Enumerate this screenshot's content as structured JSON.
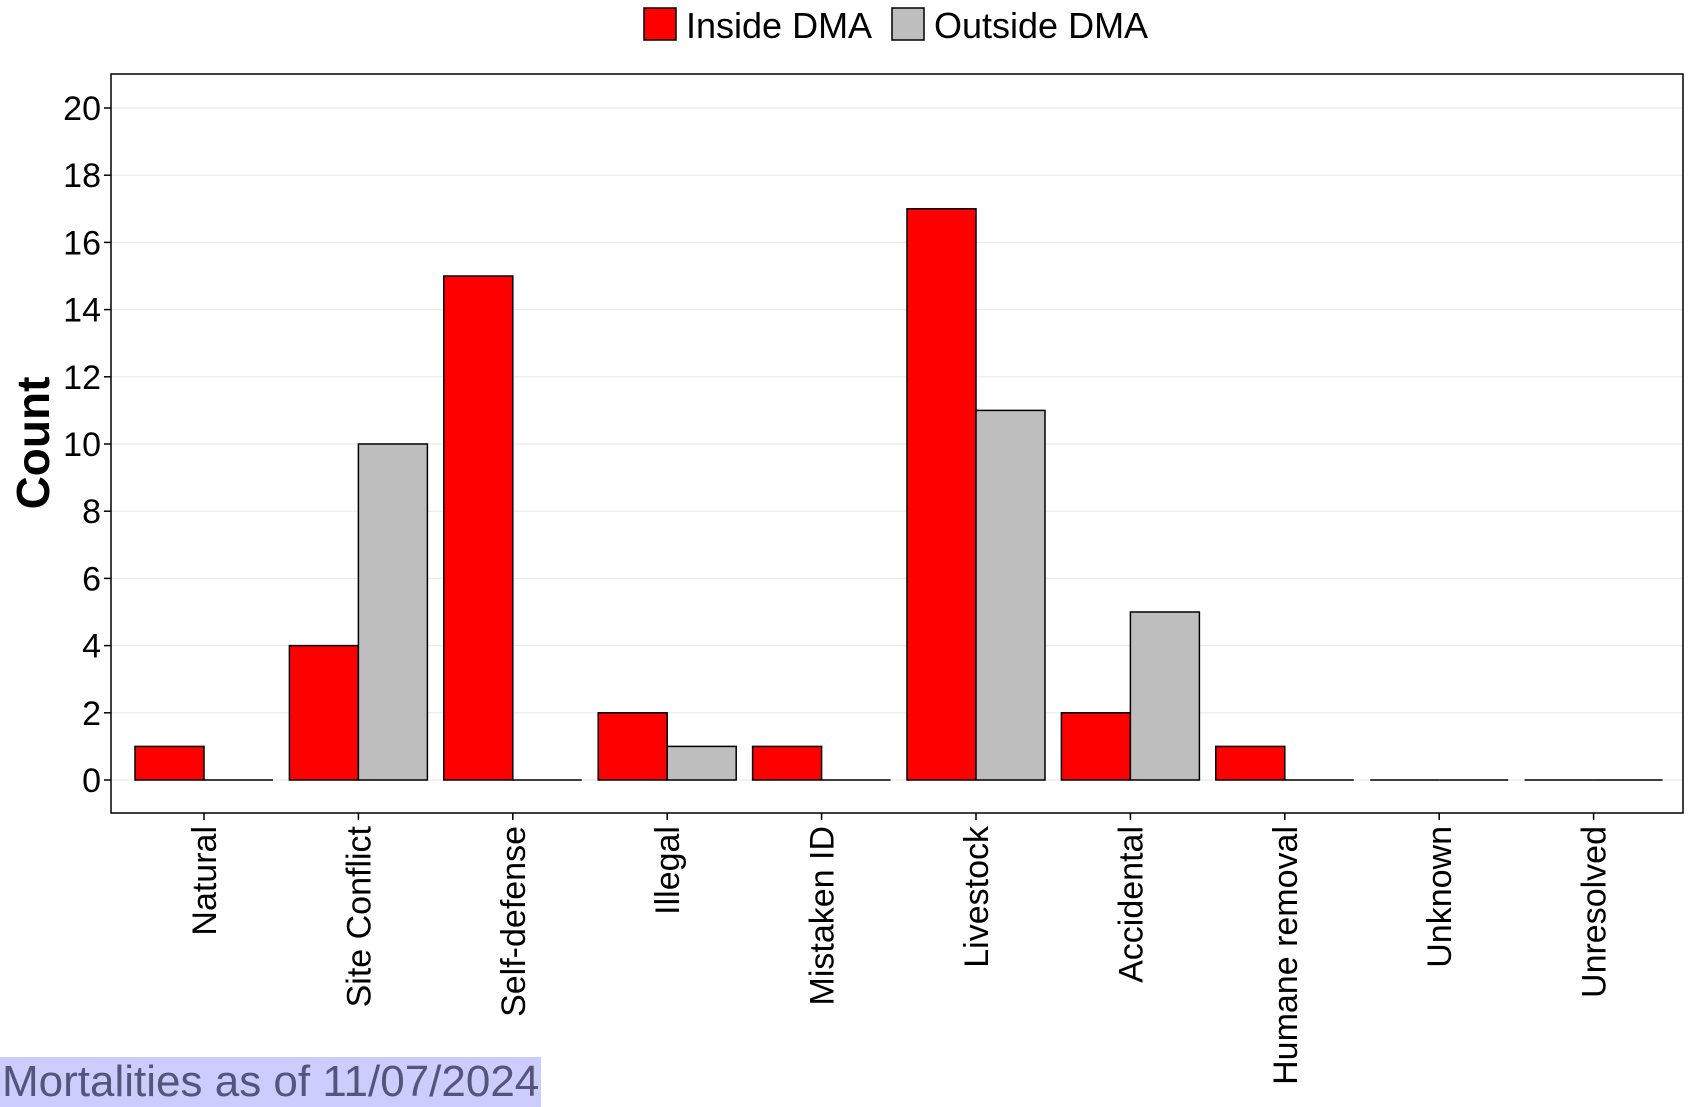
{
  "chart_data": {
    "type": "bar",
    "categories": [
      "Natural",
      "Site Conflict",
      "Self-defense",
      "Illegal",
      "Mistaken ID",
      "Livestock",
      "Accidental",
      "Humane removal",
      "Unknown",
      "Unresolved"
    ],
    "series": [
      {
        "name": "Inside DMA",
        "color": "#ff0000",
        "values": [
          1,
          4,
          15,
          2,
          1,
          17,
          2,
          1,
          0,
          0
        ]
      },
      {
        "name": "Outside DMA",
        "color": "#bebebe",
        "values": [
          0,
          10,
          0,
          1,
          0,
          11,
          5,
          0,
          0,
          0
        ]
      }
    ],
    "ylabel": "Count",
    "xlabel": "",
    "ylim": [
      -1,
      21
    ],
    "yticks": [
      0,
      2,
      4,
      6,
      8,
      10,
      12,
      14,
      16,
      18,
      20
    ],
    "grid": true,
    "legend_position": "top"
  },
  "footer": {
    "note": "Mortalities as of 11/07/2024"
  }
}
